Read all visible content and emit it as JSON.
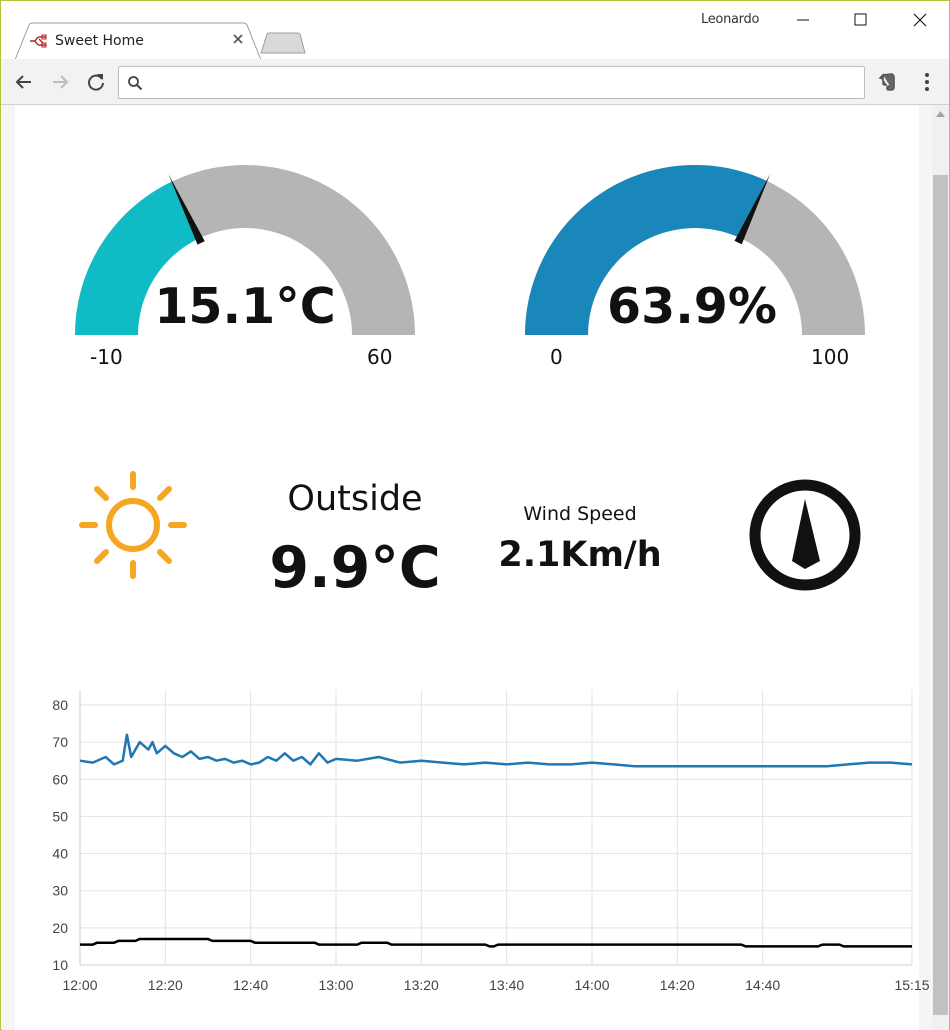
{
  "browser": {
    "tab_title": "Sweet Home",
    "profile_name": "Leonardo",
    "address_value": "",
    "address_placeholder": ""
  },
  "gauges": {
    "temperature": {
      "value_text": "15.1°C",
      "value": 15.1,
      "min": -10,
      "max": 60,
      "min_label": "-10",
      "max_label": "60",
      "color": "#0fbcc6"
    },
    "humidity": {
      "value_text": "63.9%",
      "value": 63.9,
      "min": 0,
      "max": 100,
      "min_label": "0",
      "max_label": "100",
      "color": "#1a87ba"
    },
    "track_color": "#b5b5b5"
  },
  "outside": {
    "title": "Outside",
    "value": "9.9°C",
    "weather_icon": "sun-icon"
  },
  "wind": {
    "title": "Wind Speed",
    "value": "2.1Km/h",
    "direction_icon": "compass-arrow-icon"
  },
  "chart_data": {
    "type": "line",
    "title": "",
    "xlabel": "",
    "ylabel": "",
    "ylim": [
      10,
      80
    ],
    "xlim": [
      "12:00",
      "15:15"
    ],
    "y_ticks": [
      "80",
      "70",
      "60",
      "50",
      "40",
      "30",
      "20",
      "10"
    ],
    "x_ticks": [
      "12:00",
      "12:20",
      "12:40",
      "13:00",
      "13:20",
      "13:40",
      "14:00",
      "14:20",
      "14:40",
      "15:15"
    ],
    "grid": true,
    "series": [
      {
        "color": "#1f77b4",
        "x": [
          "12:00",
          "12:03",
          "12:06",
          "12:08",
          "12:10",
          "12:11",
          "12:12",
          "12:14",
          "12:16",
          "12:17",
          "12:18",
          "12:20",
          "12:22",
          "12:24",
          "12:26",
          "12:28",
          "12:30",
          "12:32",
          "12:34",
          "12:36",
          "12:38",
          "12:40",
          "12:42",
          "12:44",
          "12:46",
          "12:48",
          "12:50",
          "12:52",
          "12:54",
          "12:56",
          "12:58",
          "13:00",
          "13:05",
          "13:10",
          "13:15",
          "13:20",
          "13:25",
          "13:30",
          "13:35",
          "13:40",
          "13:45",
          "13:50",
          "13:55",
          "14:00",
          "14:05",
          "14:10",
          "14:15",
          "14:20",
          "14:25",
          "14:30",
          "14:35",
          "14:40",
          "14:45",
          "14:50",
          "14:55",
          "15:00",
          "15:05",
          "15:10",
          "15:15"
        ],
        "values": [
          65,
          64.5,
          66,
          64,
          65,
          72,
          66,
          70,
          68,
          70,
          67,
          69,
          67,
          66,
          67.5,
          65.5,
          66,
          65,
          65.5,
          64.5,
          65,
          64,
          64.5,
          66,
          65,
          67,
          65,
          66,
          64,
          67,
          64.5,
          65.5,
          65,
          66,
          64.5,
          65,
          64.5,
          64,
          64.5,
          64,
          64.5,
          64,
          64,
          64.5,
          64,
          63.5,
          63.5,
          63.5,
          63.5,
          63.5,
          63.5,
          63.5,
          63.5,
          63.5,
          63.5,
          64,
          64.5,
          64.5,
          64
        ]
      },
      {
        "color": "#000000",
        "x": [
          "12:00",
          "12:03",
          "12:04",
          "12:08",
          "12:09",
          "12:13",
          "12:14",
          "12:30",
          "12:31",
          "12:40",
          "12:41",
          "12:55",
          "12:56",
          "13:05",
          "13:06",
          "13:12",
          "13:13",
          "13:35",
          "13:36",
          "13:37",
          "13:38",
          "14:35",
          "14:36",
          "14:38",
          "14:39",
          "14:53",
          "14:54",
          "14:58",
          "14:59",
          "15:15"
        ],
        "values": [
          15.5,
          15.5,
          16,
          16,
          16.5,
          16.5,
          17,
          17,
          16.5,
          16.5,
          16,
          16,
          15.5,
          15.5,
          16,
          16,
          15.5,
          15.5,
          15,
          15,
          15.5,
          15.5,
          15,
          15,
          15,
          15,
          15.5,
          15.5,
          15,
          15
        ]
      }
    ]
  }
}
